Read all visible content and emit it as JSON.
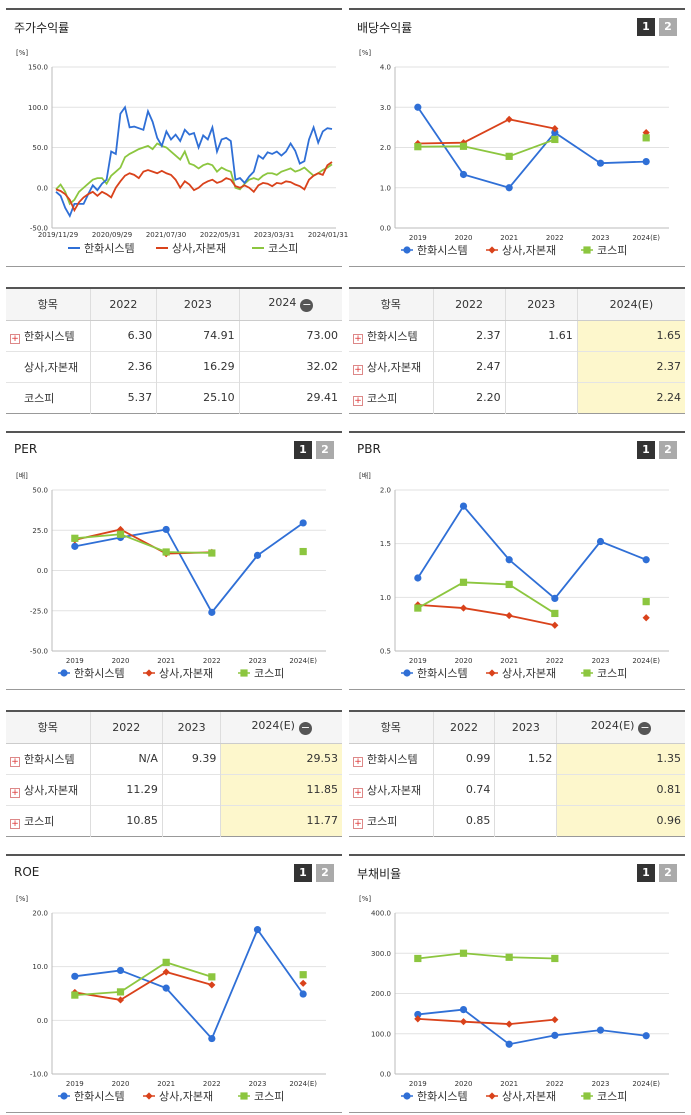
{
  "colors": {
    "s1": "#2f6fd6",
    "s2": "#d9421b",
    "s3": "#8cc63f"
  },
  "legend": [
    "한화시스템",
    "상사,자본재",
    "코스피"
  ],
  "pager": {
    "one": "1",
    "two": "2"
  },
  "charts": {
    "stock": {
      "title": "주가수익률",
      "unit": "[%]",
      "chart_data": {
        "type": "line",
        "ylim": [
          -50,
          150
        ],
        "yticks": [
          "150.0",
          "100.0",
          "50.0",
          "0.0",
          "-50.0"
        ],
        "xticks": [
          "2019/11/29",
          "2020/09/29",
          "2021/07/30",
          "2022/05/31",
          "2023/03/31",
          "2024/01/31"
        ],
        "x_count": 61,
        "series": [
          {
            "name": "한화시스템",
            "values": [
              -5,
              -10,
              -25,
              -35,
              -20,
              -20,
              -20,
              -8,
              3,
              -3,
              5,
              10,
              45,
              42,
              92,
              100,
              75,
              76,
              74,
              72,
              95,
              82,
              62,
              52,
              70,
              60,
              66,
              58,
              72,
              66,
              68,
              50,
              65,
              60,
              75,
              45,
              60,
              62,
              58,
              10,
              12,
              6,
              14,
              20,
              40,
              36,
              44,
              42,
              45,
              40,
              45,
              55,
              46,
              30,
              33,
              60,
              75,
              56,
              70,
              74,
              73
            ]
          },
          {
            "name": "상사,자본재",
            "values": [
              -2,
              -4,
              -8,
              -15,
              -28,
              -18,
              -12,
              -8,
              -5,
              -10,
              -5,
              -8,
              -12,
              0,
              8,
              15,
              18,
              16,
              12,
              20,
              22,
              20,
              18,
              21,
              18,
              16,
              10,
              0,
              8,
              4,
              -3,
              0,
              5,
              8,
              10,
              6,
              8,
              12,
              10,
              2,
              0,
              3,
              0,
              -5,
              3,
              6,
              5,
              2,
              6,
              5,
              8,
              7,
              4,
              2,
              -2,
              10,
              15,
              18,
              16,
              28,
              32
            ]
          },
          {
            "name": "코스피",
            "values": [
              -2,
              4,
              -5,
              -20,
              -15,
              -5,
              0,
              5,
              10,
              12,
              12,
              5,
              15,
              20,
              25,
              38,
              42,
              45,
              48,
              50,
              52,
              48,
              55,
              52,
              50,
              45,
              40,
              35,
              45,
              30,
              28,
              24,
              28,
              30,
              28,
              20,
              25,
              22,
              20,
              0,
              -2,
              5,
              10,
              12,
              10,
              15,
              18,
              18,
              16,
              20,
              22,
              24,
              20,
              22,
              25,
              20,
              15,
              18,
              22,
              25,
              29
            ]
          }
        ]
      }
    },
    "div": {
      "title": "배당수익률",
      "unit": "[%]",
      "chart_data": {
        "type": "line",
        "ylim": [
          0,
          4
        ],
        "yticks": [
          "4.0",
          "3.0",
          "2.0",
          "1.0",
          "0.0"
        ],
        "categories": [
          "2019",
          "2020",
          "2021",
          "2022",
          "2023",
          "2024(E)"
        ],
        "series": [
          {
            "name": "한화시스템",
            "values": [
              3.0,
              1.33,
              1.0,
              2.37,
              1.61,
              1.65
            ]
          },
          {
            "name": "상사,자본재",
            "values": [
              2.1,
              2.12,
              2.7,
              2.47,
              null,
              2.37
            ]
          },
          {
            "name": "코스피",
            "values": [
              2.02,
              2.03,
              1.78,
              2.2,
              null,
              2.24
            ]
          }
        ]
      }
    },
    "per": {
      "title": "PER",
      "unit": "[배]",
      "chart_data": {
        "type": "line",
        "ylim": [
          -50,
          50
        ],
        "yticks": [
          "50.0",
          "25.0",
          "0.0",
          "-25.0",
          "-50.0"
        ],
        "categories": [
          "2019",
          "2020",
          "2021",
          "2022",
          "2023",
          "2024(E)"
        ],
        "series": [
          {
            "name": "한화시스템",
            "values": [
              15,
              20.5,
              25.5,
              -26,
              9.39,
              29.53
            ]
          },
          {
            "name": "상사,자본재",
            "values": [
              19,
              25.5,
              10.5,
              11.29,
              null,
              11.85
            ]
          },
          {
            "name": "코스피",
            "values": [
              20,
              22.5,
              11.5,
              10.85,
              null,
              11.77
            ]
          }
        ]
      }
    },
    "pbr": {
      "title": "PBR",
      "unit": "[배]",
      "chart_data": {
        "type": "line",
        "ylim": [
          0.5,
          2.0
        ],
        "yticks": [
          "2.0",
          "1.5",
          "1.0",
          "0.5"
        ],
        "categories": [
          "2019",
          "2020",
          "2021",
          "2022",
          "2023",
          "2024(E)"
        ],
        "series": [
          {
            "name": "한화시스템",
            "values": [
              1.18,
              1.85,
              1.35,
              0.99,
              1.52,
              1.35
            ]
          },
          {
            "name": "상사,자본재",
            "values": [
              0.93,
              0.9,
              0.83,
              0.74,
              null,
              0.81
            ]
          },
          {
            "name": "코스피",
            "values": [
              0.9,
              1.14,
              1.12,
              0.85,
              null,
              0.96
            ]
          }
        ]
      }
    },
    "roe": {
      "title": "ROE",
      "unit": "[%]",
      "chart_data": {
        "type": "line",
        "ylim": [
          -10,
          20
        ],
        "yticks": [
          "20.0",
          "10.0",
          "0.0",
          "-10.0"
        ],
        "categories": [
          "2019",
          "2020",
          "2021",
          "2022",
          "2023",
          "2024(E)"
        ],
        "series": [
          {
            "name": "한화시스템",
            "values": [
              8.2,
              9.3,
              6.0,
              -3.4,
              16.9,
              4.9
            ]
          },
          {
            "name": "상사,자본재",
            "values": [
              5.2,
              3.8,
              9.0,
              6.6,
              null,
              6.9
            ]
          },
          {
            "name": "코스피",
            "values": [
              4.7,
              5.3,
              10.8,
              8.1,
              null,
              8.5
            ]
          }
        ]
      }
    },
    "debt": {
      "title": "부채비율",
      "unit": "[%]",
      "chart_data": {
        "type": "line",
        "ylim": [
          0,
          400
        ],
        "yticks": [
          "400.0",
          "300.0",
          "200.0",
          "100.0",
          "0.0"
        ],
        "categories": [
          "2019",
          "2020",
          "2021",
          "2022",
          "2023",
          "2024(E)"
        ],
        "series": [
          {
            "name": "한화시스템",
            "values": [
              148,
              160,
              74,
              96,
              109,
              95
            ]
          },
          {
            "name": "상사,자본재",
            "values": [
              137,
              130,
              124,
              135,
              null,
              null
            ]
          },
          {
            "name": "코스피",
            "values": [
              287,
              300,
              290,
              287,
              null,
              null
            ]
          }
        ]
      }
    }
  },
  "tables": {
    "stock": {
      "head": [
        "항목",
        "2022",
        "2023",
        "2024"
      ],
      "rows": [
        {
          "name": "한화시스템",
          "v": [
            "6.30",
            "74.91",
            "73.00"
          ]
        },
        {
          "name": "상사,자본재",
          "v": [
            "2.36",
            "16.29",
            "32.02"
          ]
        },
        {
          "name": "코스피",
          "v": [
            "5.37",
            "25.10",
            "29.41"
          ]
        }
      ]
    },
    "div": {
      "head": [
        "항목",
        "2022",
        "2023",
        "2024(E)"
      ],
      "rows": [
        {
          "name": "한화시스템",
          "v": [
            "2.37",
            "1.61",
            "1.65"
          ]
        },
        {
          "name": "상사,자본재",
          "v": [
            "2.47",
            "",
            "2.37"
          ]
        },
        {
          "name": "코스피",
          "v": [
            "2.20",
            "",
            "2.24"
          ]
        }
      ]
    },
    "per": {
      "head": [
        "항목",
        "2022",
        "2023",
        "2024(E)"
      ],
      "rows": [
        {
          "name": "한화시스템",
          "v": [
            "N/A",
            "9.39",
            "29.53"
          ]
        },
        {
          "name": "상사,자본재",
          "v": [
            "11.29",
            "",
            "11.85"
          ]
        },
        {
          "name": "코스피",
          "v": [
            "10.85",
            "",
            "11.77"
          ]
        }
      ]
    },
    "pbr": {
      "head": [
        "항목",
        "2022",
        "2023",
        "2024(E)"
      ],
      "rows": [
        {
          "name": "한화시스템",
          "v": [
            "0.99",
            "1.52",
            "1.35"
          ]
        },
        {
          "name": "상사,자본재",
          "v": [
            "0.74",
            "",
            "0.81"
          ]
        },
        {
          "name": "코스피",
          "v": [
            "0.85",
            "",
            "0.96"
          ]
        }
      ]
    }
  }
}
